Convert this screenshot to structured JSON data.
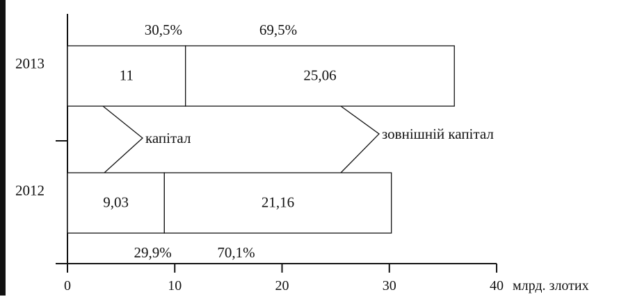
{
  "chart_data": {
    "type": "bar",
    "orientation": "horizontal",
    "stacked": true,
    "categories": [
      "2013",
      "2012"
    ],
    "series": [
      {
        "values": [
          11,
          9.03
        ],
        "value_labels": [
          "11",
          "9,03"
        ]
      },
      {
        "values": [
          25.06,
          21.16
        ],
        "value_labels": [
          "25,06",
          "21,16"
        ]
      }
    ],
    "percent_labels": [
      [
        "30,5%",
        "69,5%"
      ],
      [
        "29,9%",
        "70,1%"
      ]
    ],
    "annotations": [
      "капітал",
      "зовнішній капітал"
    ],
    "x_ticks": [
      "0",
      "10",
      "20",
      "30",
      "40"
    ],
    "x_unit": "млрд. злотих",
    "xlim": [
      0,
      40
    ],
    "grid": false
  }
}
